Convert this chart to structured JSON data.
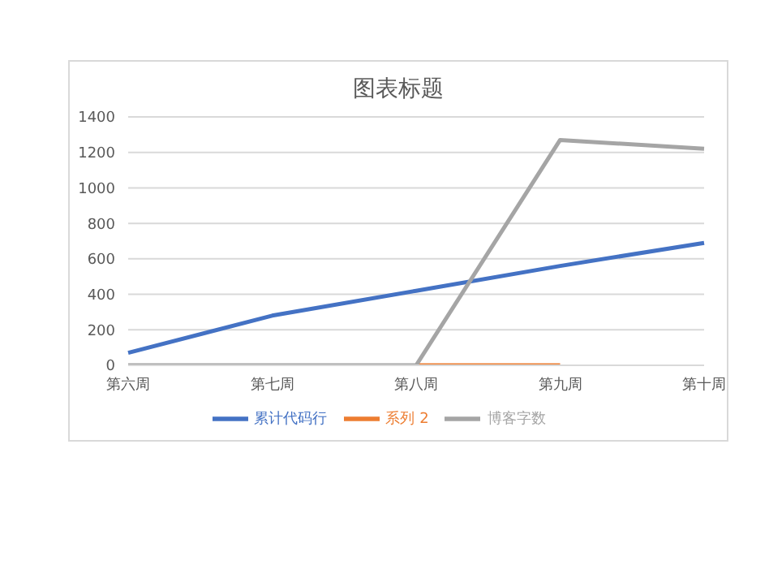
{
  "chart_data": {
    "type": "line",
    "title": "图表标题",
    "categories": [
      "第六周",
      "第七周",
      "第八周",
      "第九周",
      "第十周"
    ],
    "series": [
      {
        "name": "累计代码行",
        "color": "#4472c4",
        "values": [
          70,
          280,
          420,
          560,
          690
        ]
      },
      {
        "name": "系列 2",
        "color": "#ed7d31",
        "values": [
          null,
          null,
          0,
          0,
          null
        ]
      },
      {
        "name": "博客字数",
        "color": "#a5a5a5",
        "values": [
          0,
          0,
          0,
          1270,
          1220
        ]
      }
    ],
    "ylim": [
      0,
      1400
    ],
    "yticks": [
      0,
      200,
      400,
      600,
      800,
      1000,
      1200,
      1400
    ],
    "grid": "y",
    "legend": "bottom",
    "marker": "none",
    "line_style": "solid"
  }
}
